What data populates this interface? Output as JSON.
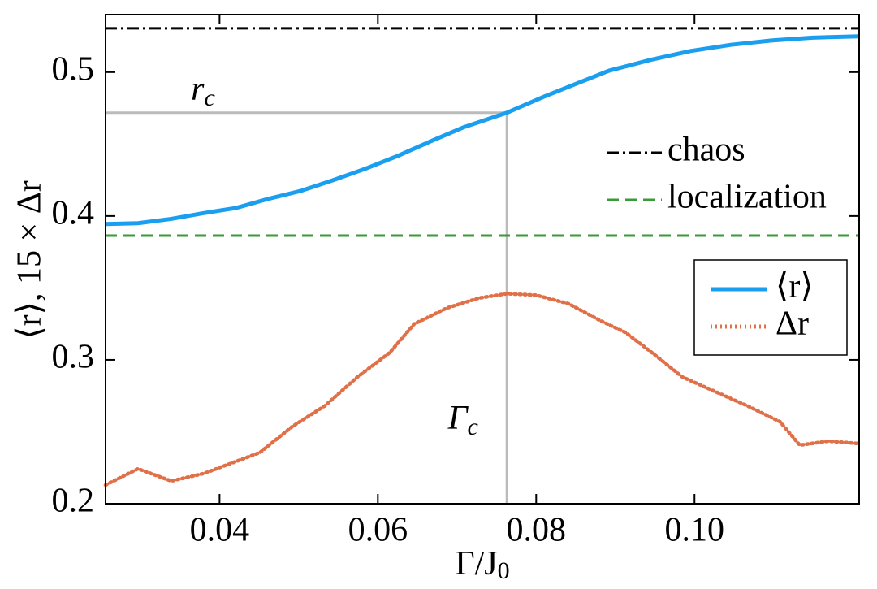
{
  "chart_data": {
    "type": "line",
    "x_label": {
      "text": "Γ/J",
      "subscript": "0"
    },
    "y_label": "⟨r⟩, 15 × Δr",
    "xlim": [
      0.0256,
      0.1208
    ],
    "ylim": [
      0.2,
      0.54
    ],
    "xticks": [
      0.04,
      0.06,
      0.08,
      {
        "value": 0.1,
        "label": "0.10"
      }
    ],
    "yticks": [
      0.2,
      0.3,
      0.4,
      0.5
    ],
    "series": [
      {
        "name": "⟨r⟩",
        "color": "#1a9ef0",
        "dash": "solid",
        "x": [
          0.0256,
          0.0297,
          0.0339,
          0.038,
          0.0421,
          0.0462,
          0.0503,
          0.0544,
          0.0585,
          0.0626,
          0.0667,
          0.0708,
          0.0763,
          0.081,
          0.0851,
          0.0892,
          0.0944,
          0.0995,
          0.1046,
          0.1097,
          0.1149,
          0.1208
        ],
        "values": [
          0.3944,
          0.395,
          0.398,
          0.402,
          0.4056,
          0.412,
          0.4175,
          0.425,
          0.433,
          0.442,
          0.452,
          0.4616,
          0.4718,
          0.483,
          0.492,
          0.501,
          0.5085,
          0.5147,
          0.519,
          0.522,
          0.524,
          0.5249
        ]
      },
      {
        "name": "Δr",
        "color": "#e07048",
        "dash": "dotted",
        "x": [
          0.0256,
          0.0297,
          0.0339,
          0.038,
          0.0421,
          0.0451,
          0.0492,
          0.0533,
          0.0574,
          0.0615,
          0.0646,
          0.0687,
          0.0728,
          0.0763,
          0.08,
          0.0841,
          0.0882,
          0.0913,
          0.0944,
          0.0985,
          0.1026,
          0.1067,
          0.1108,
          0.1133,
          0.1169,
          0.1208
        ],
        "values": [
          0.213,
          0.2243,
          0.2158,
          0.221,
          0.2294,
          0.2356,
          0.2537,
          0.268,
          0.288,
          0.305,
          0.325,
          0.336,
          0.343,
          0.346,
          0.345,
          0.339,
          0.327,
          0.319,
          0.306,
          0.288,
          0.278,
          0.268,
          0.257,
          0.2407,
          0.2435,
          0.2418
        ]
      }
    ],
    "hlines": [
      {
        "name": "chaos",
        "color": "#000000",
        "dash": "dashdot",
        "value": 0.5305
      },
      {
        "name": "localization",
        "color": "#3a9a3a",
        "dash": "dashed",
        "value": 0.3864
      }
    ],
    "reference_lines": [
      {
        "label": "r",
        "subscript": "c",
        "axis": "y",
        "value": 0.4718
      },
      {
        "label": "Γ",
        "subscript": "c",
        "axis": "x",
        "value": 0.0763
      }
    ]
  }
}
